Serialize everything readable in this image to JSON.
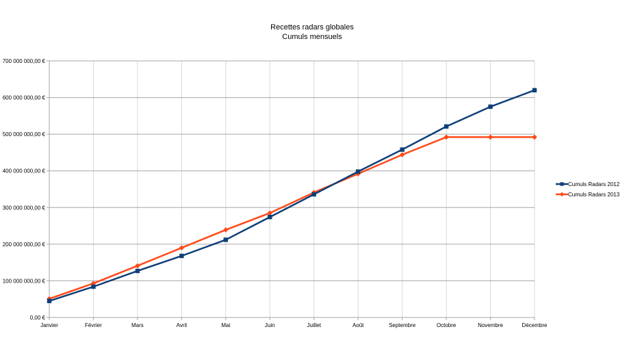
{
  "chart_data": {
    "type": "line",
    "title": "Recettes radars globales",
    "subtitle": "Cumuls mensuels",
    "xlabel": "",
    "ylabel": "",
    "categories": [
      "Janvier",
      "Février",
      "Mars",
      "Avril",
      "Mai",
      "Juin",
      "Juillet",
      "Août",
      "Septembre",
      "Octobre",
      "Novembre",
      "Décembre"
    ],
    "ylim": [
      0,
      700000000
    ],
    "yticks": [
      0,
      100000000,
      200000000,
      300000000,
      400000000,
      500000000,
      600000000,
      700000000
    ],
    "ytick_labels": [
      "0,00 €",
      "100 000 000,00 €",
      "200 000 000,00 €",
      "300 000 000,00 €",
      "400 000 000,00 €",
      "500 000 000,00 €",
      "600 000 000,00 €",
      "700 000 000,00 €"
    ],
    "grid": true,
    "legend_position": "right",
    "series": [
      {
        "name": "Cumuls Radars 2012",
        "color": "#0f3f78",
        "marker": "square",
        "values": [
          45000000,
          84000000,
          127000000,
          168000000,
          212000000,
          274000000,
          336000000,
          398000000,
          458000000,
          521000000,
          575000000,
          620000000
        ]
      },
      {
        "name": "Cumuls Radars 2013",
        "color": "#ff4a1a",
        "marker": "diamond",
        "values": [
          51000000,
          93000000,
          141000000,
          190000000,
          239000000,
          285000000,
          341000000,
          392000000,
          444000000,
          492000000,
          492000000,
          492000000
        ]
      }
    ]
  }
}
